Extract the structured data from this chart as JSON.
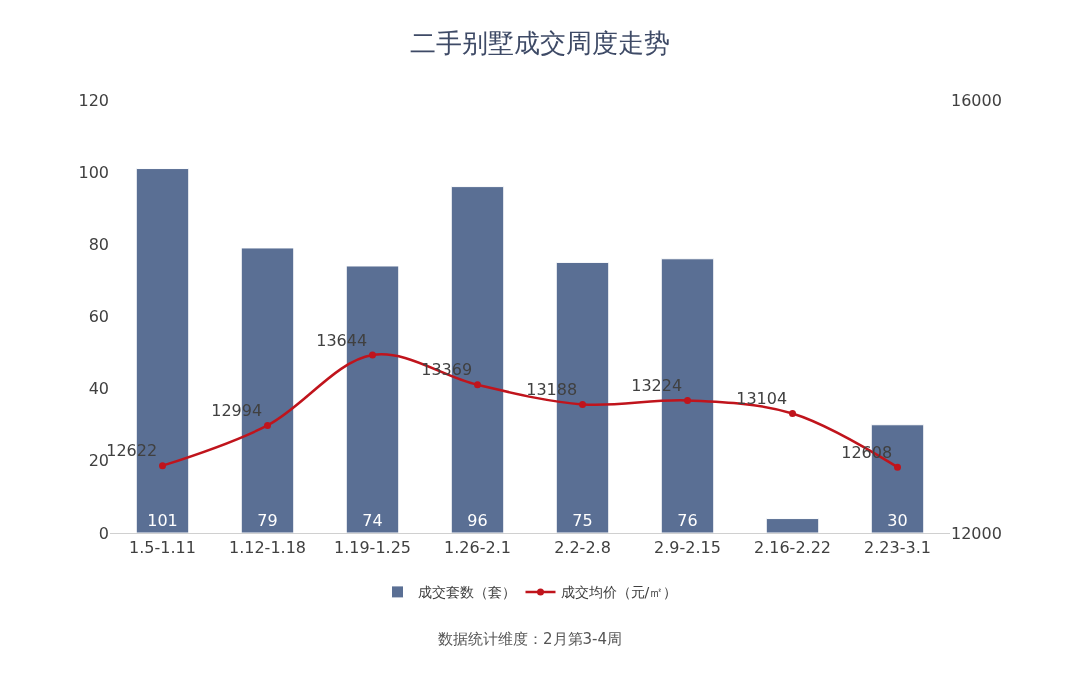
{
  "chart_data": {
    "type": "bar",
    "title": "二手别墅成交周度走势",
    "categories": [
      "1.5-1.11",
      "1.12-1.18",
      "1.19-1.25",
      "1.26-2.1",
      "2.2-2.8",
      "2.9-2.15",
      "2.16-2.22",
      "2.23-3.1"
    ],
    "series": [
      {
        "name": "成交套数（套）",
        "color": "#5a6f94",
        "values": [
          101,
          79,
          74,
          96,
          75,
          76,
          4,
          30
        ],
        "value_labels": [
          "101",
          "79",
          "74",
          "96",
          "75",
          "76",
          null,
          "30"
        ]
      },
      {
        "name": "成交均价（元/㎡）",
        "type": "line",
        "axis": "y2",
        "color": "#c0141c",
        "marker": "circle",
        "values": [
          12622,
          12994,
          13644,
          13369,
          13188,
          13224,
          13104,
          12608
        ],
        "value_labels": [
          "12622",
          "12994",
          "13644",
          "13369",
          "13188",
          "13224",
          "13104",
          "12608"
        ]
      }
    ],
    "ylim": [
      0,
      120
    ],
    "yticks": [
      0,
      20,
      40,
      60,
      80,
      100,
      120
    ],
    "y2lim": [
      12000,
      16000
    ],
    "y2ticks": [
      12000,
      16000
    ],
    "legend": "bottom",
    "annotations": [
      "数据统计维度：2月第3-4周"
    ]
  }
}
